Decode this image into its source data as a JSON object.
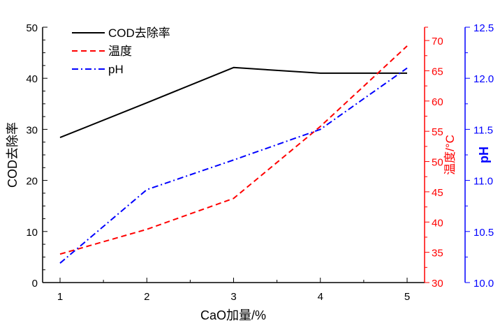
{
  "chart_data": {
    "type": "line",
    "title": "",
    "xlabel": "CaO加量/%",
    "x": [
      1,
      2,
      3,
      4,
      5
    ],
    "xlim": [
      0.8,
      5.2
    ],
    "x_ticks": [
      "1",
      "2",
      "3",
      "4",
      "5"
    ],
    "grid": false,
    "legend_position": "top-left",
    "axes": {
      "left": {
        "label": "COD去除率",
        "range": [
          0,
          50
        ],
        "ticks": [
          "0",
          "10",
          "20",
          "30",
          "40",
          "50"
        ],
        "color": "#000000"
      },
      "right1": {
        "label": "温度/°C",
        "range": [
          30,
          72.2
        ],
        "ticks": [
          "30",
          "35",
          "40",
          "45",
          "50",
          "55",
          "60",
          "65",
          "70"
        ],
        "color": "#ff0000"
      },
      "right2": {
        "label": "pH",
        "range": [
          10.0,
          12.5
        ],
        "ticks": [
          "10.0",
          "10.5",
          "11.0",
          "11.5",
          "12.0",
          "12.5"
        ],
        "color": "#0000ff"
      }
    },
    "series": [
      {
        "name": "COD去除率",
        "axis": "left",
        "color": "#000000",
        "style": "solid",
        "values": [
          28.4,
          35.2,
          42.1,
          41.0,
          41.0
        ]
      },
      {
        "name": "温度",
        "axis": "right1",
        "color": "#ff0000",
        "style": "dash",
        "values": [
          34.7,
          38.8,
          43.9,
          55.8,
          69.1
        ]
      },
      {
        "name": "pH",
        "axis": "right2",
        "color": "#0000ff",
        "style": "dashdot",
        "values": [
          10.19,
          10.91,
          11.2,
          11.5,
          12.1
        ]
      }
    ]
  }
}
